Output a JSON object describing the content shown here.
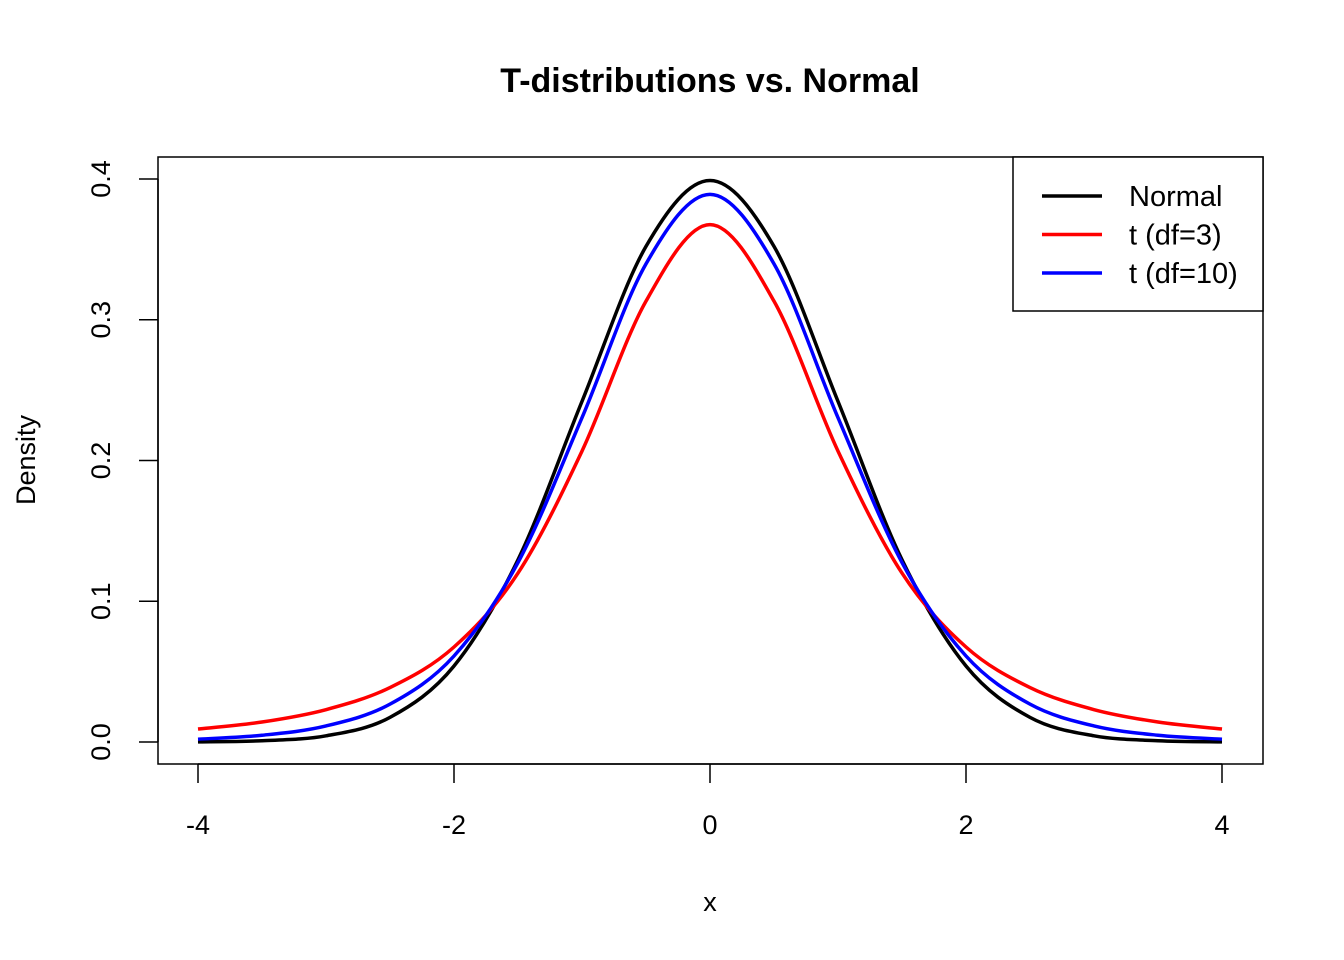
{
  "chart_data": {
    "type": "line",
    "title": "T-distributions vs. Normal",
    "xlabel": "x",
    "ylabel": "Density",
    "xlim": [
      -4,
      4
    ],
    "ylim": [
      0,
      0.4
    ],
    "xticks": [
      "-4",
      "-2",
      "0",
      "2",
      "4"
    ],
    "yticks": [
      "0.0",
      "0.1",
      "0.2",
      "0.3",
      "0.4"
    ],
    "grid": false,
    "legend_position": "top-right",
    "x": [
      -4,
      -3.5,
      -3,
      -2.5,
      -2,
      -1.5,
      -1,
      -0.5,
      0,
      0.5,
      1,
      1.5,
      2,
      2.5,
      3,
      3.5,
      4
    ],
    "series": [
      {
        "name": "Normal",
        "color": "#000000",
        "values": [
          0.0001,
          0.0009,
          0.0044,
          0.0175,
          0.054,
          0.1295,
          0.242,
          0.3521,
          0.3989,
          0.3521,
          0.242,
          0.1295,
          0.054,
          0.0175,
          0.0044,
          0.0009,
          0.0001
        ]
      },
      {
        "name": "t (df=3)",
        "color": "#ff0000",
        "values": [
          0.0092,
          0.0142,
          0.023,
          0.0387,
          0.0675,
          0.12,
          0.2067,
          0.3132,
          0.3676,
          0.3132,
          0.2067,
          0.12,
          0.0675,
          0.0387,
          0.023,
          0.0142,
          0.0092
        ]
      },
      {
        "name": "t (df=10)",
        "color": "#0000ff",
        "values": [
          0.002,
          0.0048,
          0.0114,
          0.0269,
          0.0611,
          0.1275,
          0.2304,
          0.3397,
          0.3891,
          0.3397,
          0.2304,
          0.1275,
          0.0611,
          0.0269,
          0.0114,
          0.0048,
          0.002
        ]
      }
    ]
  }
}
